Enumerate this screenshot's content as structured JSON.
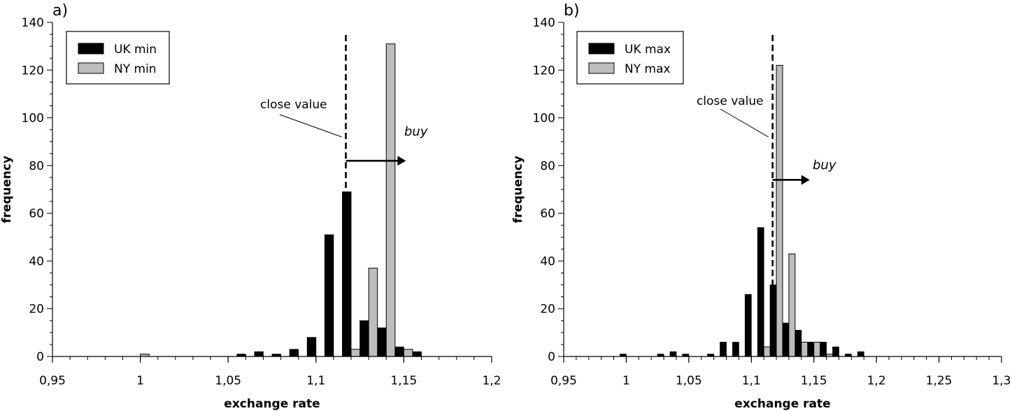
{
  "chart_data": [
    {
      "type": "bar",
      "panel_label": "a)",
      "xlabel": "exchange rate",
      "ylabel": "frequency",
      "xlim": [
        0.95,
        1.2
      ],
      "ylim": [
        0,
        140
      ],
      "x_ticks": [
        0.95,
        1,
        1.05,
        1.1,
        1.15,
        1.2
      ],
      "x_tick_labels": [
        "0,95",
        "1",
        "1,05",
        "1,1",
        "1,15",
        "1,2"
      ],
      "y_ticks": [
        0,
        20,
        40,
        60,
        80,
        100,
        120,
        140
      ],
      "y_tick_labels": [
        "0",
        "20",
        "40",
        "60",
        "80",
        "100",
        "120",
        "140"
      ],
      "bin_width": 0.01,
      "legend_position": "top-left",
      "series": [
        {
          "name": "UK min",
          "color": "#000000",
          "x": [
            1.06,
            1.07,
            1.08,
            1.09,
            1.1,
            1.11,
            1.12,
            1.13,
            1.14,
            1.15,
            1.16
          ],
          "values": [
            1,
            2,
            1,
            3,
            8,
            51,
            69,
            15,
            12,
            4,
            2
          ]
        },
        {
          "name": "NY min",
          "color": "#bdbdbd",
          "x": [
            1.0,
            1.12,
            1.13,
            1.14,
            1.15
          ],
          "values": [
            1,
            3,
            37,
            131,
            3
          ]
        }
      ],
      "close_value": {
        "label": "close value",
        "x": 1.117
      },
      "buy": {
        "label": "buy",
        "y": 82,
        "x_from": 1.117,
        "x_to": 1.15
      }
    },
    {
      "type": "bar",
      "panel_label": "b)",
      "xlabel": "exchange rate",
      "ylabel": "frequency",
      "xlim": [
        0.95,
        1.3
      ],
      "ylim": [
        0,
        140
      ],
      "x_ticks": [
        0.95,
        1,
        1.05,
        1.1,
        1.15,
        1.2,
        1.25,
        1.3
      ],
      "x_tick_labels": [
        "0,95",
        "1",
        "1,05",
        "1,1",
        "1,15",
        "1,2",
        "1,25",
        "1,3"
      ],
      "y_ticks": [
        0,
        20,
        40,
        60,
        80,
        100,
        120,
        140
      ],
      "y_tick_labels": [
        "0",
        "20",
        "40",
        "60",
        "80",
        "100",
        "120",
        "140"
      ],
      "bin_width": 0.01,
      "legend_position": "top-left",
      "series": [
        {
          "name": "UK max",
          "color": "#000000",
          "x": [
            1.0,
            1.03,
            1.04,
            1.05,
            1.07,
            1.08,
            1.09,
            1.1,
            1.11,
            1.12,
            1.13,
            1.14,
            1.15,
            1.16,
            1.17,
            1.18,
            1.19
          ],
          "values": [
            1,
            1,
            2,
            1,
            1,
            6,
            6,
            26,
            54,
            30,
            14,
            11,
            6,
            6,
            4,
            1,
            2
          ]
        },
        {
          "name": "NY max",
          "color": "#bdbdbd",
          "x": [
            1.11,
            1.12,
            1.13,
            1.14,
            1.15,
            1.16
          ],
          "values": [
            4,
            122,
            43,
            6,
            6,
            1
          ]
        }
      ],
      "close_value": {
        "label": "close value",
        "x": 1.117
      },
      "buy": {
        "label": "buy",
        "y": 74,
        "x_from": 1.117,
        "x_to": 1.145
      }
    }
  ]
}
